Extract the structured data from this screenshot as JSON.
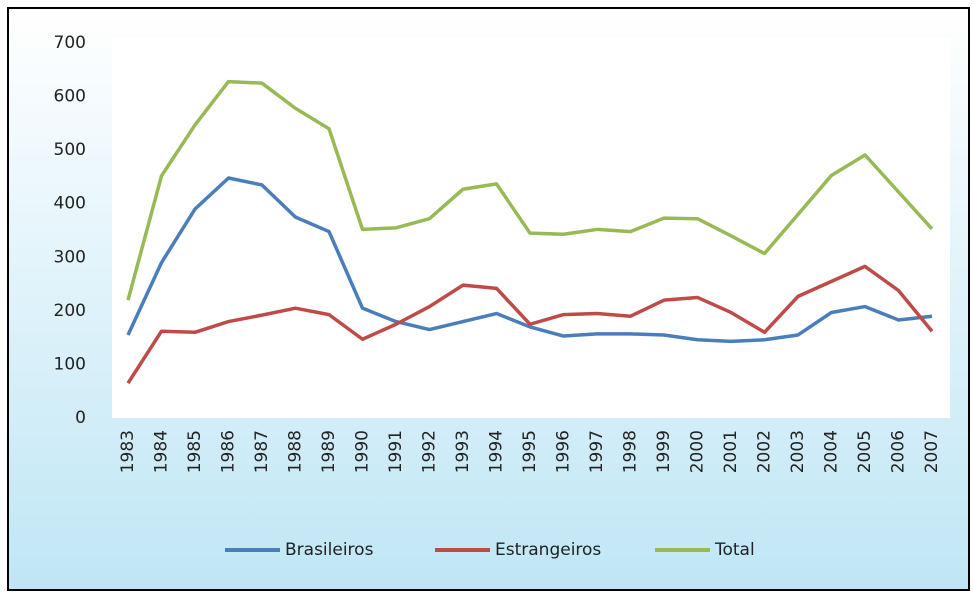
{
  "chart_data": {
    "type": "line",
    "categories": [
      "1983",
      "1984",
      "1985",
      "1986",
      "1987",
      "1988",
      "1989",
      "1990",
      "1991",
      "1992",
      "1993",
      "1994",
      "1995",
      "1996",
      "1997",
      "1998",
      "1999",
      "2000",
      "2001",
      "2002",
      "2003",
      "2004",
      "2005",
      "2006",
      "2007"
    ],
    "series": [
      {
        "name": "Brasileiros",
        "color": "#4a7ebb",
        "values": [
          155,
          290,
          390,
          448,
          435,
          375,
          348,
          205,
          180,
          165,
          180,
          195,
          170,
          153,
          157,
          157,
          155,
          146,
          143,
          146,
          155,
          197,
          208,
          183,
          190
        ]
      },
      {
        "name": "Estrangeiros",
        "color": "#be4b48",
        "values": [
          65,
          162,
          160,
          180,
          192,
          205,
          193,
          147,
          175,
          208,
          248,
          242,
          175,
          193,
          195,
          190,
          220,
          225,
          197,
          160,
          227,
          255,
          283,
          238,
          162
        ]
      },
      {
        "name": "Total",
        "color": "#98b954",
        "values": [
          220,
          452,
          547,
          628,
          625,
          578,
          540,
          352,
          355,
          372,
          427,
          437,
          345,
          343,
          352,
          348,
          373,
          372,
          340,
          307,
          380,
          453,
          491,
          422,
          353
        ]
      }
    ],
    "ylim": [
      0,
      700
    ],
    "yticks": [
      0,
      100,
      200,
      300,
      400,
      500,
      600,
      700
    ],
    "grid": false,
    "legend": "bottom"
  }
}
